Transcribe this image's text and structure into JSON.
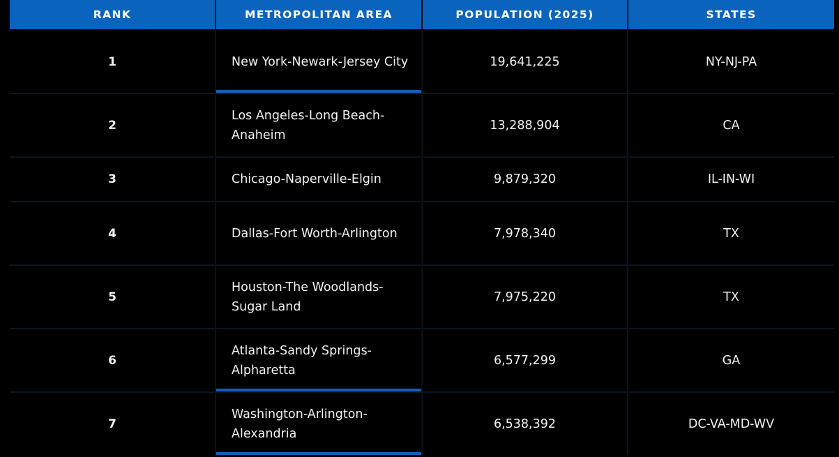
{
  "table": {
    "headers": {
      "rank": "RANK",
      "metro": "METROPOLITAN AREA",
      "population": "POPULATION (2025)",
      "states": "STATES"
    },
    "accent_color": "#1261b8",
    "header_color": "#0a63bd",
    "rows": [
      {
        "rank": "1",
        "metro": "New York-Newark-Jersey City",
        "population": "19,641,225",
        "states": "NY-NJ-PA"
      },
      {
        "rank": "2",
        "metro": "Los Angeles-Long Beach-Anaheim",
        "population": "13,288,904",
        "states": "CA"
      },
      {
        "rank": "3",
        "metro": "Chicago-Naperville-Elgin",
        "population": "9,879,320",
        "states": "IL-IN-WI"
      },
      {
        "rank": "4",
        "metro": "Dallas-Fort Worth-Arlington",
        "population": "7,978,340",
        "states": "TX"
      },
      {
        "rank": "5",
        "metro": "Houston-The Woodlands-Sugar Land",
        "population": "7,975,220",
        "states": "TX"
      },
      {
        "rank": "6",
        "metro": "Atlanta-Sandy Springs-Alpharetta",
        "population": "6,577,299",
        "states": "GA"
      },
      {
        "rank": "7",
        "metro": "Washington-Arlington-Alexandria",
        "population": "6,538,392",
        "states": "DC-VA-MD-WV"
      }
    ]
  }
}
